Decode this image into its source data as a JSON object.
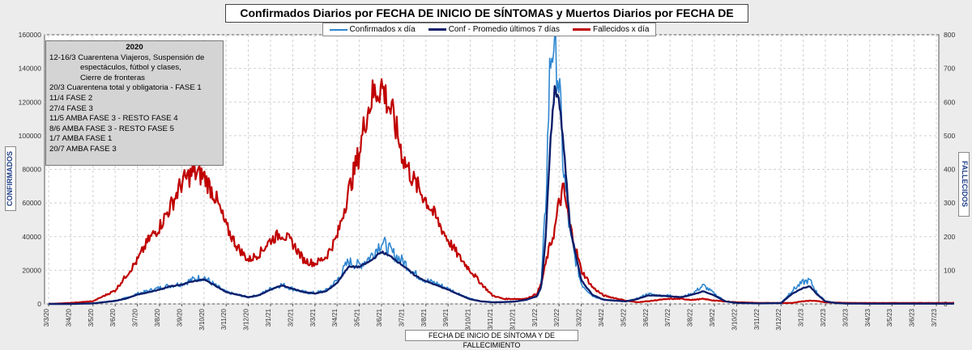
{
  "title": "Confirmados  Diarios  por FECHA DE INICIO DE SÍNTOMAS y Muertos Diarios  por  FECHA DE MUERTE",
  "legend": [
    {
      "label": "Confirmados x día",
      "color": "#2e86d1",
      "width": 2
    },
    {
      "label": "Conf - Promedio últimos 7 días",
      "color": "#0d1f6b",
      "width": 3
    },
    {
      "label": "Fallecidos x día",
      "color": "#c00000",
      "width": 3
    }
  ],
  "notes": {
    "title": "2020",
    "lines": [
      "12-16/3  Cuarentena Viajeros, Suspensión de",
      "espectáculos, fútbol y clases,",
      "Cierre de fronteras",
      "20/3  Cuarentena total y obligatoria - FASE 1",
      "11/4  FASE 2",
      "27/4  FASE 3",
      "11/5  AMBA FASE 3 - RESTO FASE 4",
      "8/6  AMBA FASE 3 - RESTO FASE 5",
      "1/7  AMBA FASE 1",
      "20/7  AMBA FASE 3"
    ]
  },
  "chart_data": {
    "type": "line",
    "title": "Confirmados  Diarios  por FECHA DE INICIO DE SÍNTOMAS y Muertos Diarios  por  FECHA DE MUERTE",
    "xlabel": "FECHA DE INICIO DE SÍNTOMA  Y DE FALLECIMIENTO",
    "ylabel": "CONFIRMADOS",
    "y2label": "FALLECIDOS",
    "ylim": [
      0,
      160000
    ],
    "y2lim": [
      0,
      800
    ],
    "yticks": [
      "0",
      "20000",
      "40000",
      "60000",
      "80000",
      "100000",
      "120000",
      "140000",
      "160000"
    ],
    "y2ticks": [
      "0",
      "100",
      "200",
      "300",
      "400",
      "500",
      "600",
      "700",
      "800"
    ],
    "xticks": [
      "3/3/20",
      "3/4/20",
      "3/5/20",
      "3/6/20",
      "3/7/20",
      "3/8/20",
      "3/9/20",
      "3/10/20",
      "3/11/20",
      "3/12/20",
      "3/1/21",
      "3/2/21",
      "3/3/21",
      "3/4/21",
      "3/5/21",
      "3/6/21",
      "3/7/21",
      "3/8/21",
      "3/9/21",
      "3/10/21",
      "3/11/21",
      "3/12/21",
      "3/1/22",
      "3/2/22",
      "3/3/22",
      "3/4/22",
      "3/5/22",
      "3/6/22",
      "3/7/22",
      "3/8/22",
      "3/9/22",
      "3/10/22",
      "3/11/22",
      "3/12/22",
      "3/1/23",
      "3/2/23",
      "3/3/23",
      "3/4/23",
      "3/5/23",
      "3/6/23",
      "3/7/23"
    ],
    "series": [
      {
        "name": "Confirmados x día",
        "axis": "left",
        "color": "#2e86d1",
        "x": [
          0,
          1,
          2,
          3,
          3.5,
          4,
          5,
          5.5,
          6,
          6.5,
          7,
          7.5,
          8,
          9,
          9.5,
          10,
          10.5,
          11,
          11.5,
          12,
          12.5,
          13,
          13.5,
          14,
          14.5,
          15,
          15.5,
          16,
          16.5,
          17,
          17.5,
          18,
          18.5,
          19,
          19.5,
          20,
          20.5,
          21,
          21.5,
          22,
          22.2,
          22.4,
          22.6,
          22.8,
          23,
          23.2,
          23.5,
          24,
          24.5,
          25,
          26,
          26.5,
          27,
          27.5,
          28,
          28.5,
          29,
          29.5,
          30,
          30.5,
          31,
          32,
          33,
          33.5,
          34,
          34.3,
          34.6,
          35,
          35.5,
          36,
          37,
          38,
          39,
          40,
          40.8
        ],
        "y": [
          0,
          0,
          400,
          2000,
          3500,
          6000,
          9500,
          11000,
          12000,
          14500,
          16000,
          11000,
          7000,
          4000,
          5500,
          9000,
          11500,
          9000,
          7000,
          6500,
          8000,
          14000,
          25000,
          23000,
          28000,
          37000,
          30000,
          25000,
          18000,
          14000,
          12000,
          9000,
          6000,
          3000,
          1500,
          1000,
          1200,
          1500,
          2500,
          5000,
          12000,
          60000,
          145000,
          162000,
          130000,
          80000,
          40000,
          12000,
          5000,
          2500,
          1500,
          3000,
          6000,
          5000,
          5000,
          4000,
          6000,
          11000,
          6000,
          1500,
          600,
          300,
          500,
          8000,
          13000,
          14000,
          7000,
          1500,
          500,
          200,
          150,
          150,
          150,
          150,
          150
        ]
      },
      {
        "name": "Conf - Promedio últimos 7 días",
        "axis": "left",
        "color": "#0d1f6b",
        "x": [
          0,
          1,
          2,
          3,
          3.5,
          4,
          5,
          5.5,
          6,
          6.5,
          7,
          7.5,
          8,
          9,
          9.5,
          10,
          10.5,
          11,
          11.5,
          12,
          12.5,
          13,
          13.5,
          14,
          14.5,
          15,
          15.5,
          16,
          16.5,
          17,
          17.5,
          18,
          18.5,
          19,
          19.5,
          20,
          20.5,
          21,
          21.5,
          22,
          22.2,
          22.4,
          22.6,
          22.8,
          23,
          23.2,
          23.5,
          24,
          24.5,
          25,
          26,
          26.5,
          27,
          27.5,
          28,
          28.5,
          29,
          29.5,
          30,
          30.5,
          31,
          32,
          33,
          33.5,
          34,
          34.3,
          34.6,
          35,
          35.5,
          36,
          37,
          38,
          39,
          40,
          40.8
        ],
        "y": [
          0,
          0,
          300,
          1800,
          3200,
          5500,
          8500,
          10500,
          11500,
          13500,
          14500,
          11000,
          7000,
          4000,
          5200,
          8500,
          11000,
          9000,
          7000,
          6200,
          7500,
          12500,
          22000,
          22000,
          25500,
          31000,
          27500,
          22500,
          17000,
          13500,
          11000,
          8500,
          5500,
          2800,
          1500,
          1000,
          1100,
          1400,
          2400,
          4500,
          10000,
          40000,
          95000,
          128000,
          122000,
          95000,
          45000,
          14000,
          5500,
          2500,
          1500,
          2800,
          5000,
          5000,
          4500,
          4000,
          5500,
          7500,
          5000,
          1500,
          600,
          300,
          500,
          6000,
          9500,
          10500,
          6000,
          1500,
          500,
          200,
          150,
          150,
          150,
          150,
          150
        ]
      },
      {
        "name": "Fallecidos x día",
        "axis": "right",
        "color": "#c00000",
        "x": [
          0,
          1,
          2,
          3,
          4,
          4.5,
          5,
          5.5,
          6,
          6.5,
          7,
          7.5,
          8,
          8.5,
          9,
          9.5,
          10,
          10.5,
          11,
          11.5,
          12,
          12.5,
          13,
          13.5,
          14,
          14.3,
          14.6,
          15,
          15.5,
          16,
          16.5,
          17,
          17.5,
          18,
          18.5,
          19,
          19.5,
          20,
          20.5,
          21,
          21.5,
          22,
          22.2,
          22.5,
          22.8,
          23,
          23.2,
          23.5,
          24,
          24.5,
          25,
          26,
          26.5,
          27,
          27.5,
          28,
          28.5,
          29,
          29.5,
          30,
          31,
          32,
          33,
          33.5,
          34,
          34.5,
          35,
          36,
          37,
          38,
          39,
          40,
          40.8
        ],
        "y": [
          0,
          3,
          8,
          40,
          130,
          190,
          230,
          290,
          360,
          390,
          380,
          320,
          230,
          170,
          130,
          150,
          190,
          210,
          180,
          130,
          120,
          140,
          200,
          330,
          450,
          560,
          620,
          650,
          560,
          430,
          360,
          310,
          250,
          190,
          140,
          100,
          60,
          25,
          15,
          15,
          15,
          30,
          60,
          150,
          220,
          300,
          340,
          230,
          100,
          50,
          25,
          10,
          5,
          8,
          12,
          15,
          15,
          12,
          15,
          10,
          5,
          3,
          3,
          3,
          8,
          10,
          5,
          3,
          3,
          3,
          3,
          3,
          3
        ]
      }
    ]
  }
}
